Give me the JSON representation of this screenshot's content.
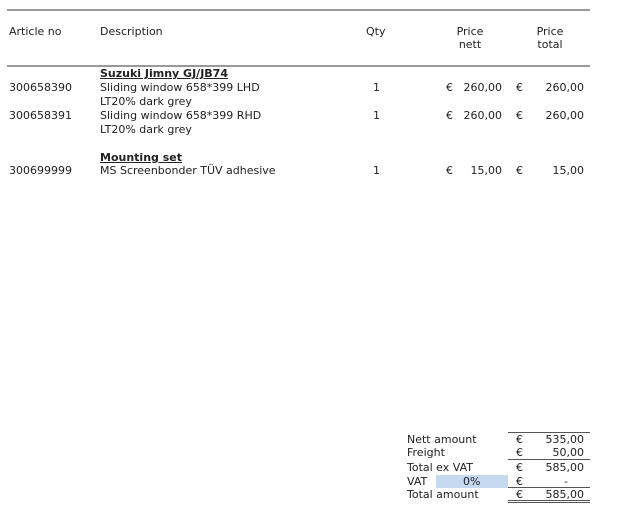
{
  "headers": {
    "article": "Article no",
    "description": "Description",
    "qty": "Qty",
    "price_nett": [
      "Price",
      "nett"
    ],
    "price_total": [
      "Price",
      "total"
    ]
  },
  "currency": "€",
  "sections": [
    {
      "title": "Suzuki Jimny GJ/JB74",
      "rows": [
        {
          "article": "300658390",
          "desc": [
            "Sliding window 658*399 LHD",
            "LT20% dark grey"
          ],
          "qty": "1",
          "nett": "260,00",
          "total": "260,00"
        },
        {
          "article": "300658391",
          "desc": [
            "Sliding window 658*399 RHD",
            "LT20% dark grey"
          ],
          "qty": "1",
          "nett": "260,00",
          "total": "260,00"
        }
      ]
    },
    {
      "title": "Mounting set",
      "rows": [
        {
          "article": "300699999",
          "desc": [
            "MS Screenbonder TÜV adhesive"
          ],
          "qty": "1",
          "nett": "15,00",
          "total": "15,00"
        }
      ]
    }
  ],
  "totals": {
    "nett_label": "Nett amount",
    "nett": "535,00",
    "freight_label": "Freight",
    "freight": "50,00",
    "exvat_label": "Total ex VAT",
    "exvat": "585,00",
    "vat_label": "VAT",
    "vat_rate": "0%",
    "vat": "-",
    "total_label": "Total amount",
    "total": "585,00"
  },
  "colors": {
    "vat_highlight": "#c6d9f1"
  }
}
